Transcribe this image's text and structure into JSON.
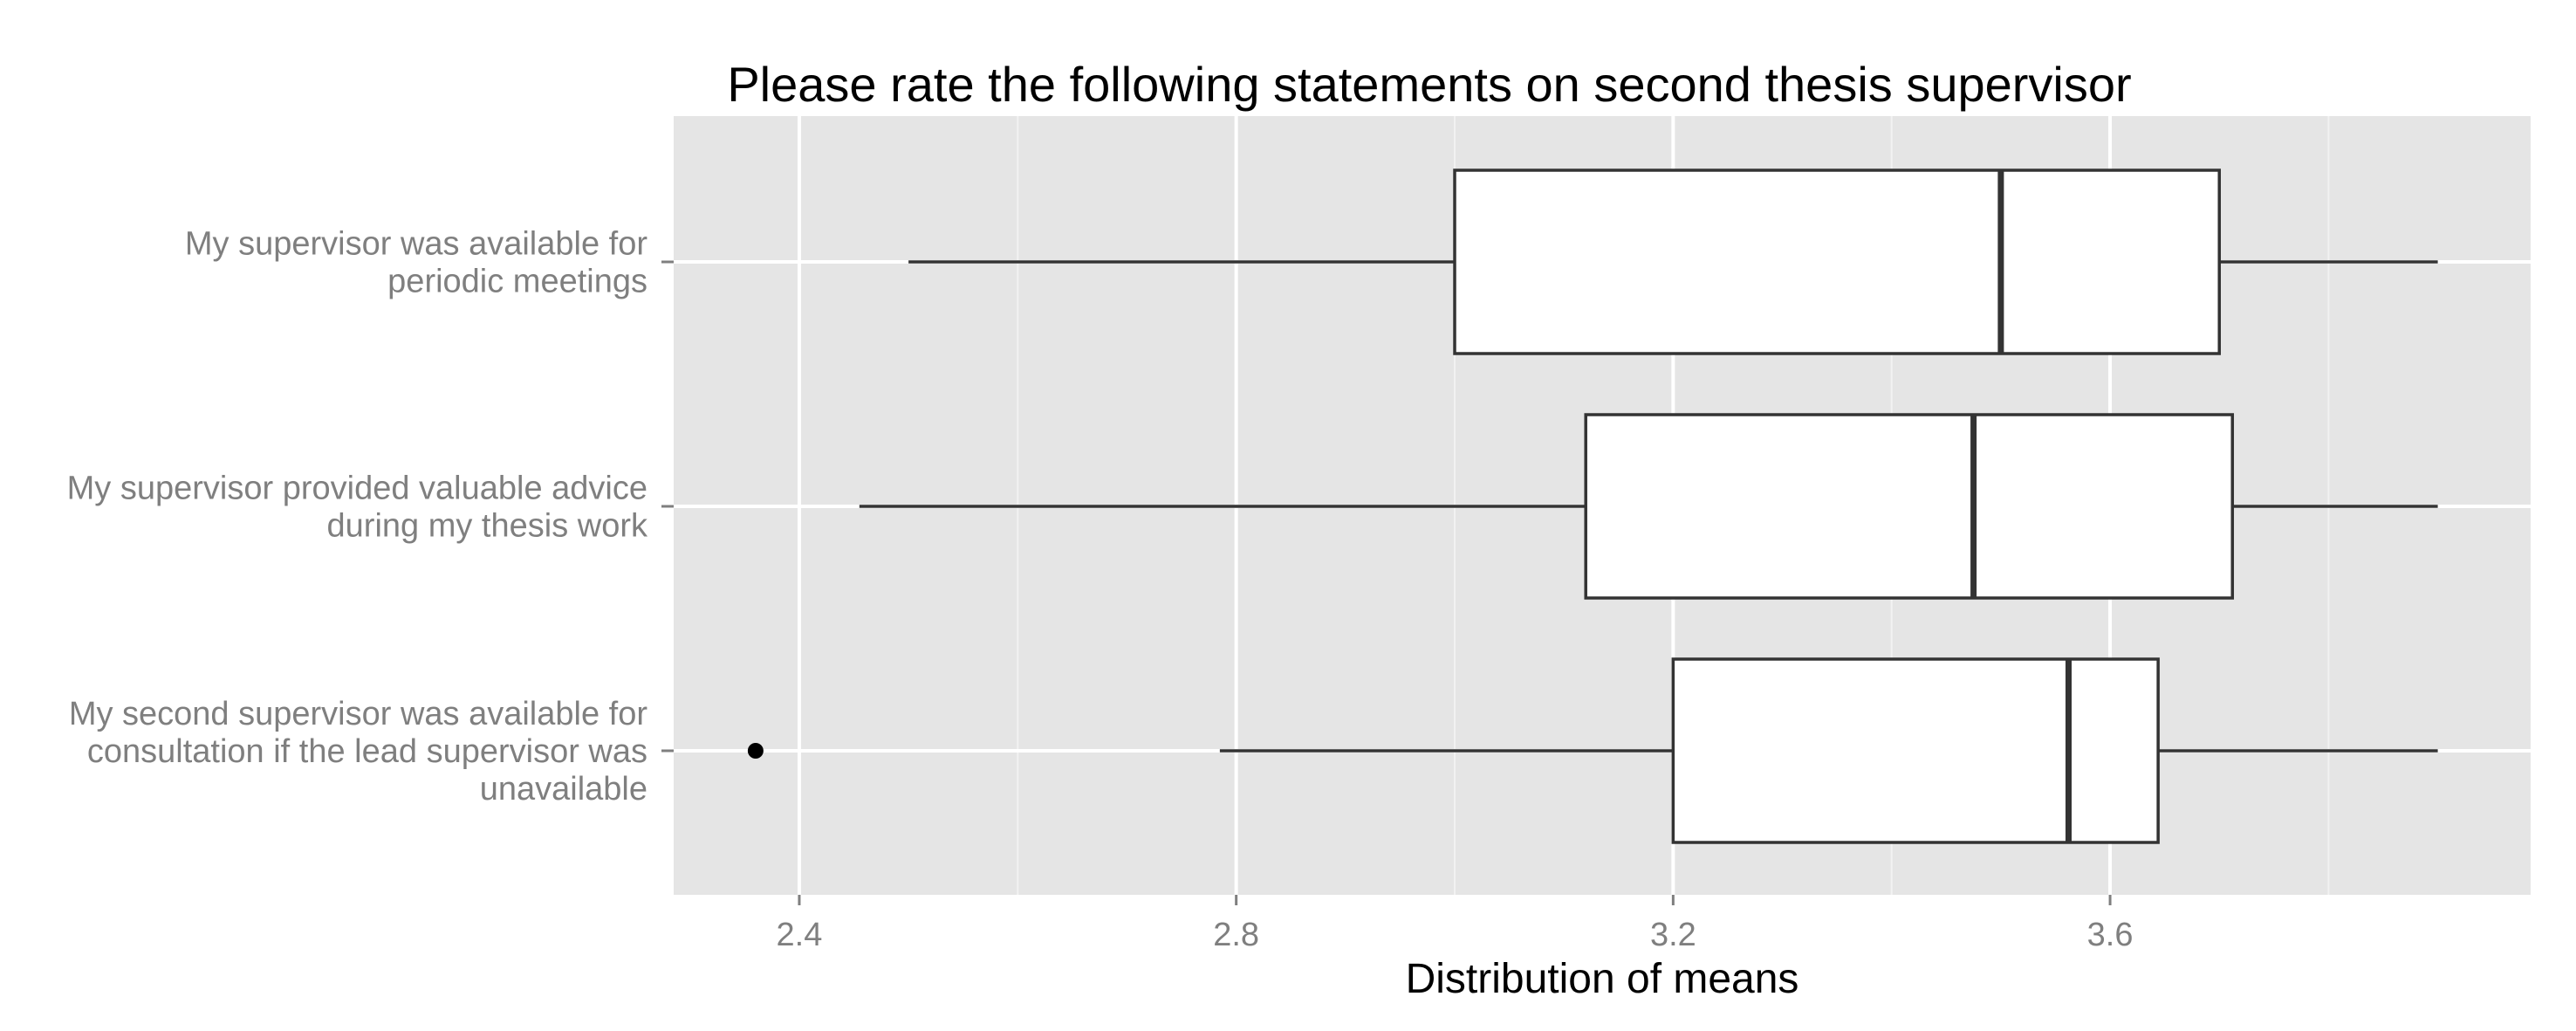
{
  "chart_data": {
    "type": "boxplot",
    "title": "Please rate the following statements on second thesis supervisor",
    "xlabel": "Distribution of means",
    "ylabel": "",
    "xlim": [
      2.285,
      3.985
    ],
    "x_ticks": [
      2.4,
      2.8,
      3.2,
      3.6
    ],
    "x_tick_labels": [
      "2.4",
      "2.8",
      "3.2",
      "3.6"
    ],
    "orientation": "horizontal",
    "grid": true,
    "colors": {
      "panel_bg": "#e5e5e5",
      "grid_major": "#ffffff",
      "grid_minor": "#f2f2f2",
      "box_fill": "#ffffff",
      "box_stroke": "#333333",
      "outlier": "#000000"
    },
    "categories": [
      {
        "label_lines": [
          "My supervisor was available for",
          "periodic meetings"
        ],
        "whisker_low": 2.5,
        "q1": 3.0,
        "median": 3.5,
        "q3": 3.7,
        "whisker_high": 3.9,
        "outliers": []
      },
      {
        "label_lines": [
          "My supervisor provided valuable advice",
          "during my thesis work"
        ],
        "whisker_low": 2.455,
        "q1": 3.12,
        "median": 3.475,
        "q3": 3.712,
        "whisker_high": 3.9,
        "outliers": []
      },
      {
        "label_lines": [
          "My second supervisor was available for",
          "consultation if the lead supervisor was",
          "unavailable"
        ],
        "whisker_low": 2.785,
        "q1": 3.2,
        "median": 3.562,
        "q3": 3.644,
        "whisker_high": 3.9,
        "outliers": [
          2.36
        ]
      }
    ]
  }
}
